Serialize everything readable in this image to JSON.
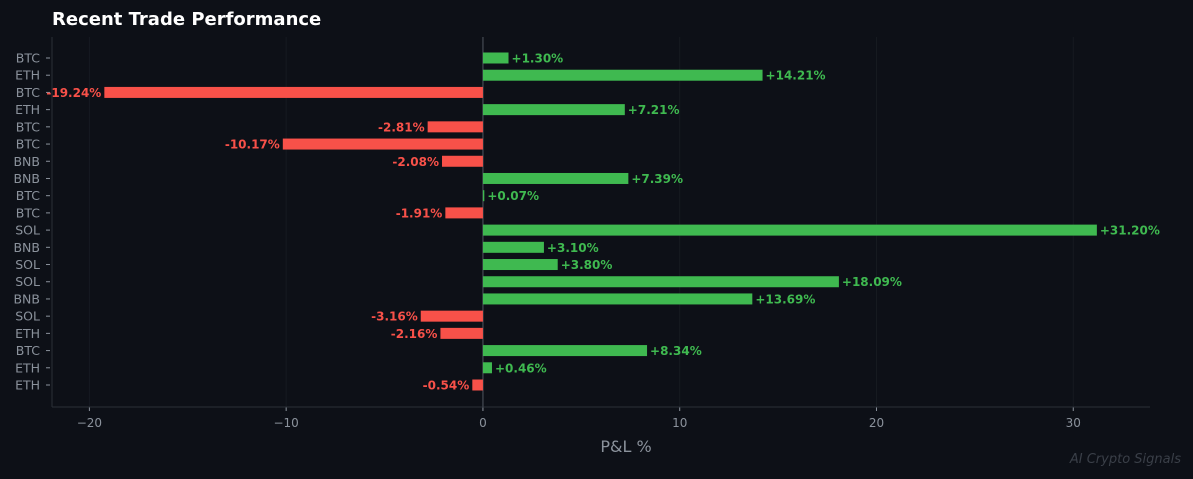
{
  "chart_data": {
    "type": "bar",
    "orientation": "horizontal",
    "title": "Recent Trade Performance",
    "xlabel": "P&L %",
    "ylabel": "",
    "xlim": [
      -21.9,
      33.9
    ],
    "xticks": [
      -20,
      -10,
      0,
      10,
      20,
      30
    ],
    "grid": "vertical",
    "categories": [
      "BTC",
      "ETH",
      "BTC",
      "ETH",
      "BTC",
      "BTC",
      "BNB",
      "BNB",
      "BTC",
      "BTC",
      "SOL",
      "BNB",
      "SOL",
      "SOL",
      "BNB",
      "SOL",
      "ETH",
      "BTC",
      "ETH",
      "ETH"
    ],
    "values": [
      1.3,
      14.21,
      -19.24,
      7.21,
      -2.81,
      -10.17,
      -2.08,
      7.39,
      0.07,
      -1.91,
      31.2,
      3.1,
      3.8,
      18.09,
      13.69,
      -3.16,
      -2.16,
      8.34,
      0.46,
      -0.54
    ],
    "labels": [
      "+1.30%",
      "+14.21%",
      "-19.24%",
      "+7.21%",
      "-2.81%",
      "-10.17%",
      "-2.08%",
      "+7.39%",
      "+0.07%",
      "-1.91%",
      "+31.20%",
      "+3.10%",
      "+3.80%",
      "+18.09%",
      "+13.69%",
      "-3.16%",
      "-2.16%",
      "+8.34%",
      "+0.46%",
      "-0.54%"
    ],
    "colors": {
      "positive": "#3fb950",
      "negative": "#f85149",
      "background": "#0d1017",
      "text": "#8b929c"
    }
  },
  "watermark": "AI Crypto Signals"
}
